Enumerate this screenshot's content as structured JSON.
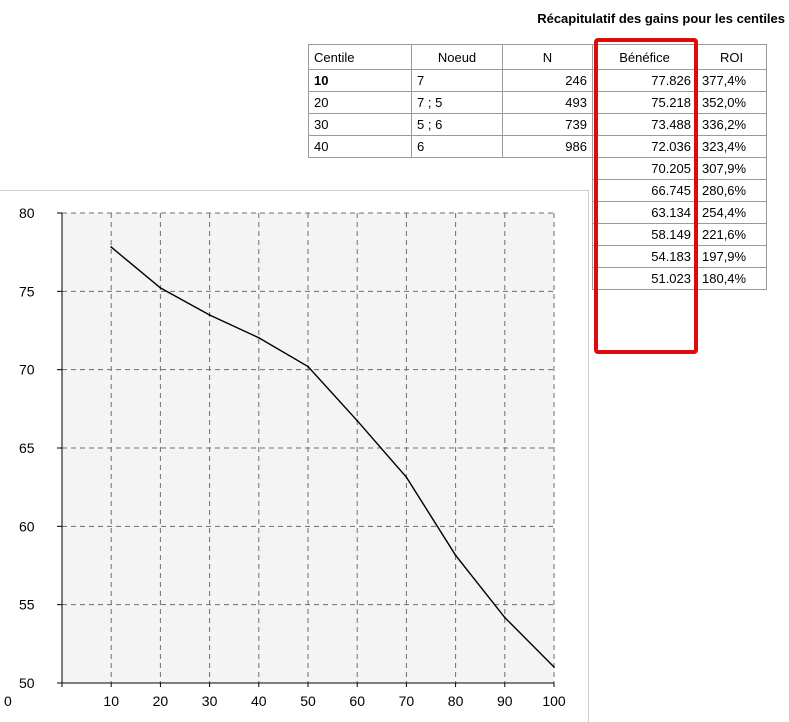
{
  "table": {
    "title": "Récapitulatif des gains pour les centiles",
    "headers": [
      "Centile",
      "Noeud",
      "N",
      "Bénéfice",
      "ROI"
    ],
    "rows": [
      {
        "centile": "10",
        "noeud": "7",
        "n": "246",
        "benefice": "77.826",
        "roi": "377,4%"
      },
      {
        "centile": "20",
        "noeud": "7 ; 5",
        "n": "493",
        "benefice": "75.218",
        "roi": "352,0%"
      },
      {
        "centile": "30",
        "noeud": "5 ; 6",
        "n": "739",
        "benefice": "73.488",
        "roi": "336,2%"
      },
      {
        "centile": "40",
        "noeud": "6",
        "n": "986",
        "benefice": "72.036",
        "roi": "323,4%"
      },
      {
        "centile": "",
        "noeud": "",
        "n": "",
        "benefice": "70.205",
        "roi": "307,9%"
      },
      {
        "centile": "",
        "noeud": "",
        "n": "",
        "benefice": "66.745",
        "roi": "280,6%"
      },
      {
        "centile": "",
        "noeud": "",
        "n": "",
        "benefice": "63.134",
        "roi": "254,4%"
      },
      {
        "centile": "",
        "noeud": "",
        "n": "",
        "benefice": "58.149",
        "roi": "221,6%"
      },
      {
        "centile": "",
        "noeud": "",
        "n": "",
        "benefice": "54.183",
        "roi": "197,9%"
      },
      {
        "centile": "",
        "noeud": "",
        "n": "",
        "benefice": "51.023",
        "roi": "180,4%"
      }
    ]
  },
  "highlight": {
    "column": "Bénéfice",
    "color": "#e10a0a"
  },
  "chart_data": {
    "type": "line",
    "title": "",
    "xlabel": "",
    "ylabel": "",
    "xlim": [
      0,
      100
    ],
    "ylim": [
      50,
      80
    ],
    "x_ticks": [
      0,
      10,
      20,
      30,
      40,
      50,
      60,
      70,
      80,
      90,
      100
    ],
    "y_ticks": [
      50,
      55,
      60,
      65,
      70,
      75,
      80
    ],
    "grid": true,
    "series": [
      {
        "x": [
          10,
          20,
          30,
          40,
          50,
          60,
          70,
          80,
          90,
          100
        ],
        "y": [
          77.826,
          75.218,
          73.488,
          72.036,
          70.205,
          66.745,
          63.134,
          58.149,
          54.183,
          51.023
        ],
        "color": "#000000"
      }
    ]
  }
}
